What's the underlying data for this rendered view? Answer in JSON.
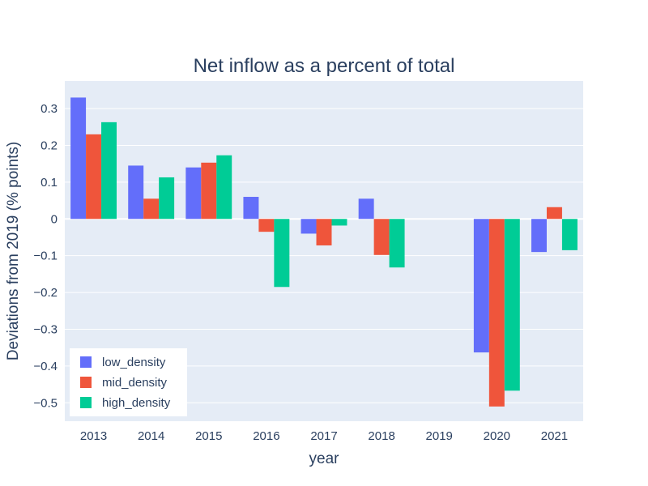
{
  "chart_data": {
    "type": "bar",
    "title": "Net inflow as a percent of total",
    "xlabel": "year",
    "ylabel": "Deviations from 2019 (% points)",
    "categories": [
      "2013",
      "2014",
      "2015",
      "2016",
      "2017",
      "2018",
      "2019",
      "2020",
      "2021"
    ],
    "series": [
      {
        "name": "low_density",
        "color": "#636efa",
        "values": [
          0.33,
          0.145,
          0.14,
          0.06,
          -0.04,
          0.055,
          0,
          -0.363,
          -0.09
        ]
      },
      {
        "name": "mid_density",
        "color": "#ef553b",
        "values": [
          0.23,
          0.055,
          0.153,
          -0.035,
          -0.072,
          -0.098,
          0,
          -0.51,
          0.032
        ]
      },
      {
        "name": "high_density",
        "color": "#00cc96",
        "values": [
          0.263,
          0.113,
          0.173,
          -0.185,
          -0.018,
          -0.132,
          0,
          -0.467,
          -0.085
        ]
      }
    ],
    "ylim": [
      -0.55,
      0.375
    ],
    "yticks": [
      0.3,
      0.2,
      0.1,
      0,
      -0.1,
      -0.2,
      -0.3,
      -0.4,
      -0.5
    ],
    "ytick_labels": [
      "0.3",
      "0.2",
      "0.1",
      "0",
      "−0.1",
      "−0.2",
      "−0.3",
      "−0.4",
      "−0.5"
    ],
    "grid": true,
    "legend_position": "bottom-left",
    "colors": {
      "plot_background": "#e5ecf6",
      "grid": "#ffffff",
      "text": "#2a3f5f"
    }
  }
}
